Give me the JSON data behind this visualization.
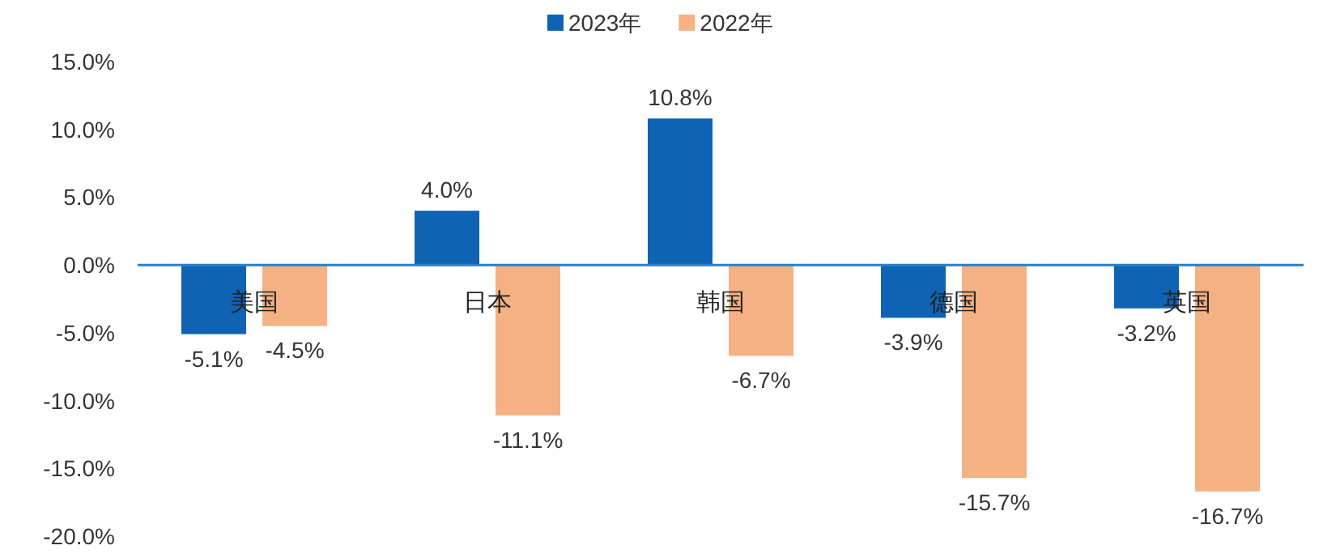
{
  "chart_data": {
    "type": "bar",
    "categories": [
      "美国",
      "日本",
      "韩国",
      "德国",
      "英国"
    ],
    "series": [
      {
        "name": "2023年",
        "color": "#0f63b5",
        "values": [
          -5.1,
          4.0,
          10.8,
          -3.9,
          -3.2
        ],
        "value_labels": [
          "-5.1%",
          "4.0%",
          "10.8%",
          "-3.9%",
          "-3.2%"
        ]
      },
      {
        "name": "2022年",
        "color": "#f4b183",
        "values": [
          -4.5,
          -11.1,
          -6.7,
          -15.7,
          -16.7
        ],
        "value_labels": [
          "-4.5%",
          "-11.1%",
          "-6.7%",
          "-15.7%",
          "-16.7%"
        ]
      }
    ],
    "ylim": [
      -20,
      15
    ],
    "yticks": [
      {
        "value": -20,
        "label": "-20.0%"
      },
      {
        "value": -15,
        "label": "-15.0%"
      },
      {
        "value": -10,
        "label": "-10.0%"
      },
      {
        "value": -5,
        "label": "-5.0%"
      },
      {
        "value": 0,
        "label": "0.0%"
      },
      {
        "value": 5,
        "label": "5.0%"
      },
      {
        "value": 10,
        "label": "10.0%"
      },
      {
        "value": 15,
        "label": "15.0%"
      }
    ],
    "legend": "top",
    "grid": false
  }
}
